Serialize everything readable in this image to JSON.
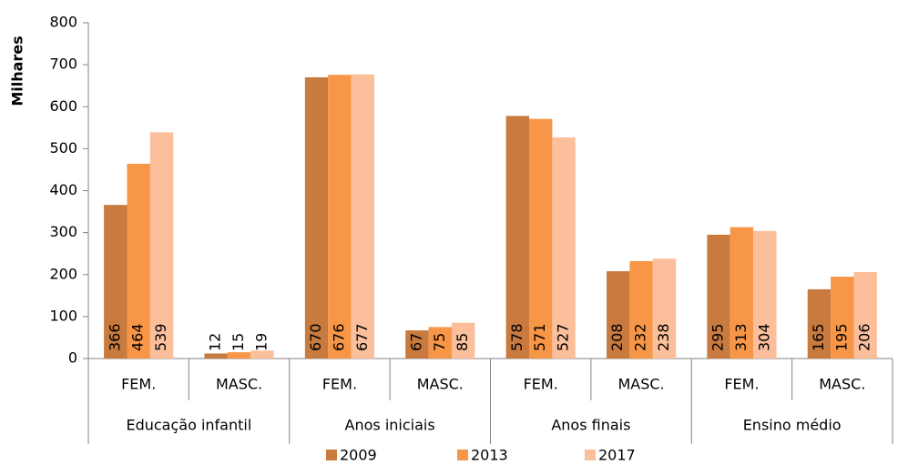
{
  "chart_data": {
    "type": "bar",
    "y_label": "Milhares",
    "categories": [
      "FEM.",
      "MASC.",
      "FEM.",
      "MASC.",
      "FEM.",
      "MASC.",
      "FEM.",
      "MASC."
    ],
    "groups": [
      "Educação infantil",
      "Anos iniciais",
      "Anos finais",
      "Ensino médio"
    ],
    "series": [
      {
        "name": "2009",
        "color": "#c87a3f",
        "values": [
          366,
          12,
          670,
          67,
          578,
          208,
          295,
          165
        ]
      },
      {
        "name": "2013",
        "color": "#f79646",
        "values": [
          464,
          15,
          676,
          75,
          571,
          232,
          313,
          195
        ]
      },
      {
        "name": "2017",
        "color": "#fbbf9c",
        "values": [
          539,
          19,
          677,
          85,
          527,
          238,
          304,
          206
        ]
      }
    ],
    "ylim": [
      0,
      800
    ],
    "yticks": [
      0,
      100,
      200,
      300,
      400,
      500,
      600,
      700,
      800
    ],
    "grid": false,
    "legend": "bottom"
  }
}
